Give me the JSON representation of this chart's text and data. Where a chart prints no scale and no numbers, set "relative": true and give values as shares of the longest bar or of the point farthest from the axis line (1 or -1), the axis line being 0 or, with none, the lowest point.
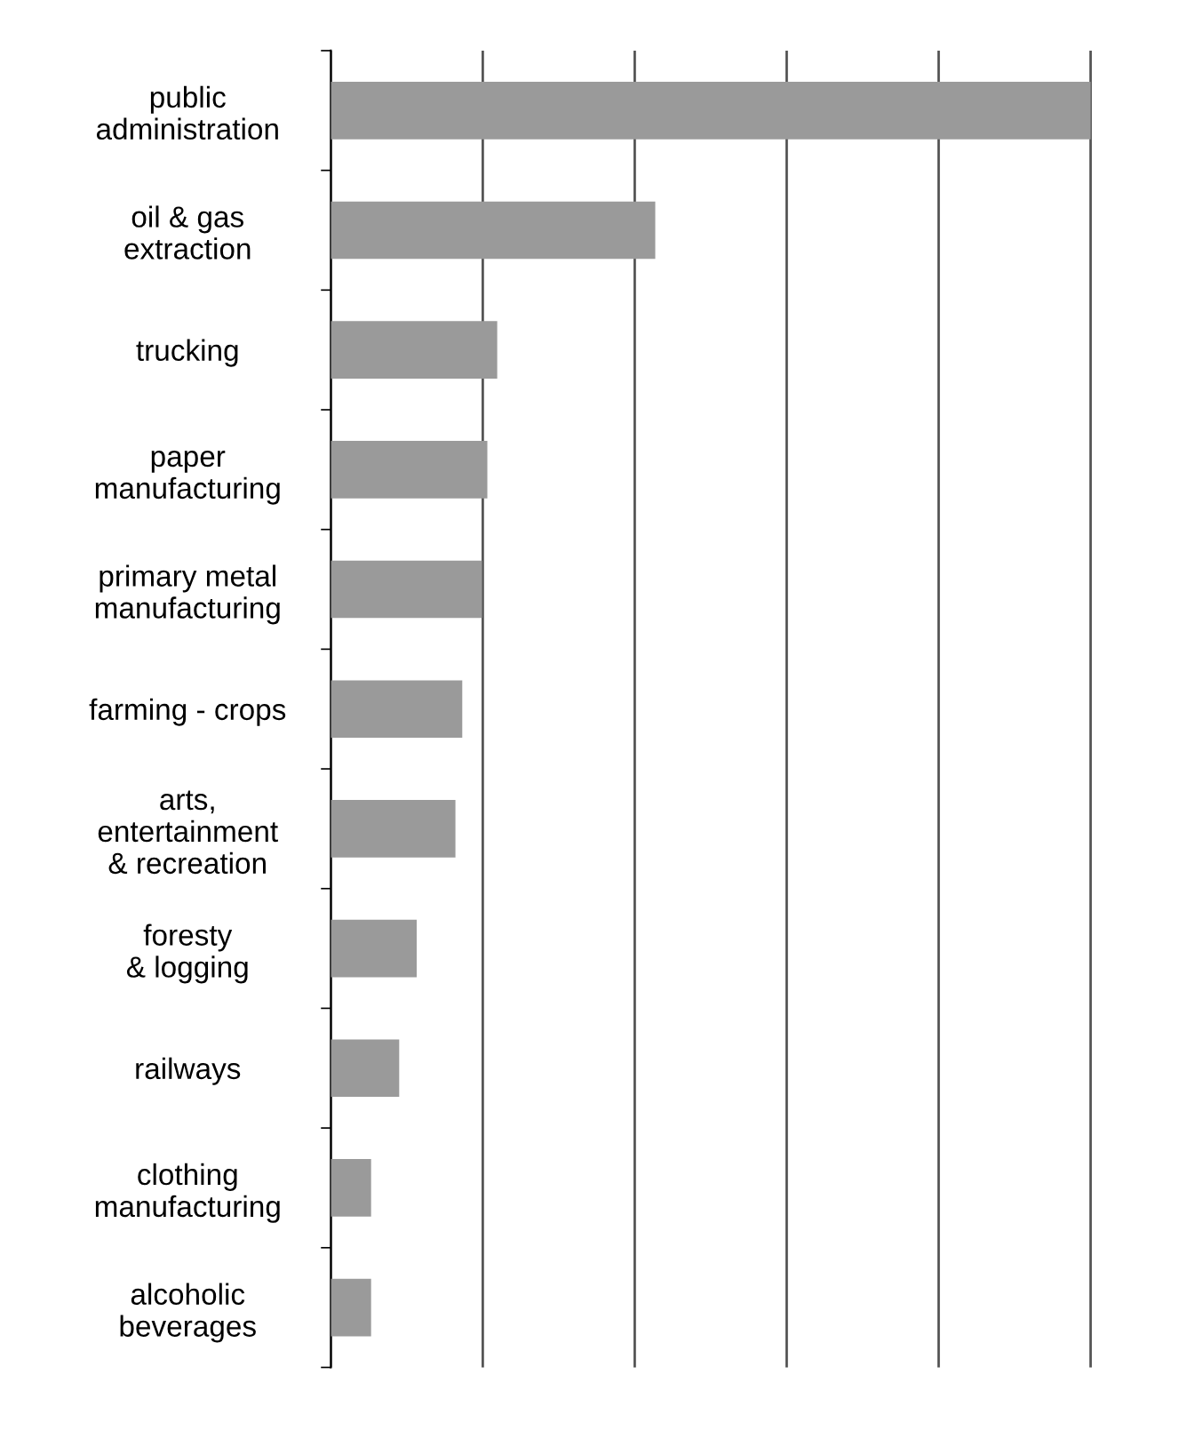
{
  "chart_data": {
    "type": "bar",
    "orientation": "horizontal",
    "relative": true,
    "categories": [
      "public\nadministration",
      "oil & gas\nextraction",
      "trucking",
      "paper\nmanufacturing",
      "primary metal\nmanufacturing",
      "farming - crops",
      "arts,\nentertainment\n& recreation",
      "foresty\n& logging",
      "railways",
      "clothing\nmanufacturing",
      "alcoholic\nbeverages"
    ],
    "values": [
      1,
      0.427,
      0.219,
      0.206,
      0.199,
      0.173,
      0.164,
      0.113,
      0.09,
      0.053,
      0.053
    ],
    "color": "#9a9a9a",
    "grid": "x"
  }
}
